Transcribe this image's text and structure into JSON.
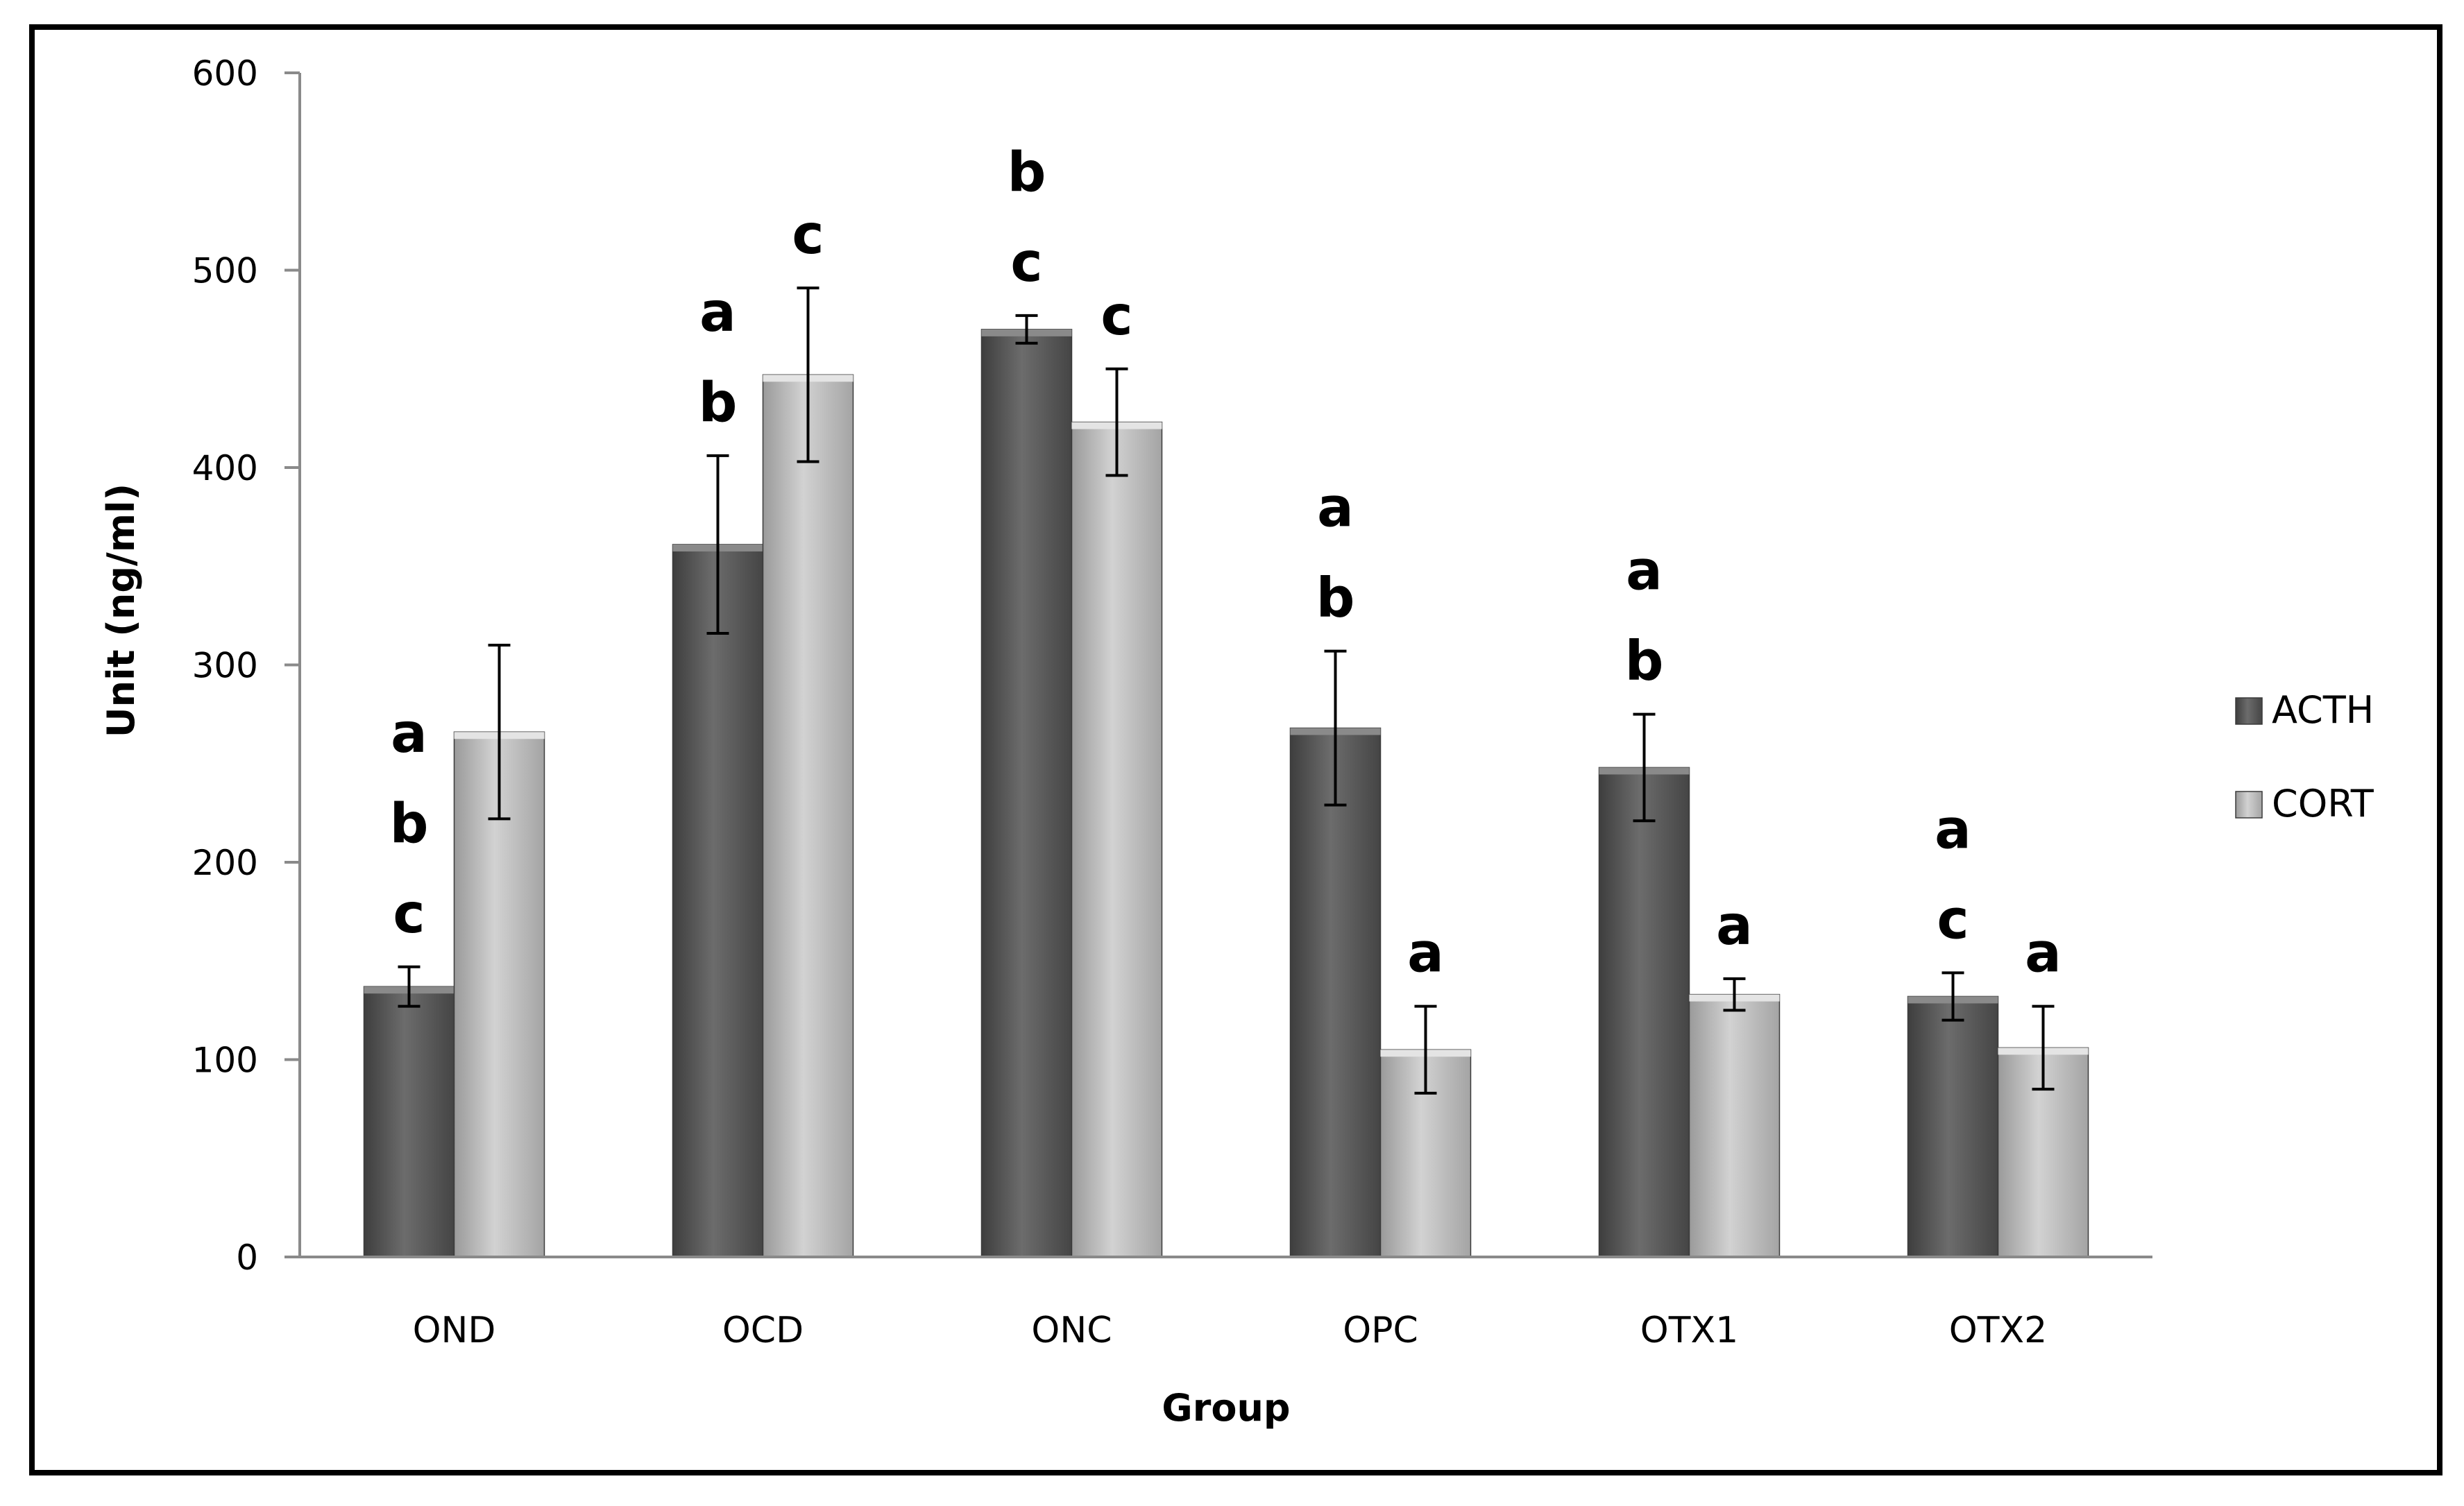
{
  "chart_data": {
    "type": "bar",
    "title": "",
    "xlabel": "Group",
    "ylabel": "Unit (ng/ml)",
    "ylim": [
      0,
      600
    ],
    "yticks": [
      0,
      100,
      200,
      300,
      400,
      500,
      600
    ],
    "categories": [
      "OND",
      "OCD",
      "ONC",
      "OPC",
      "OTX1",
      "OTX2"
    ],
    "legend_position": "right",
    "series": [
      {
        "name": "ACTH",
        "color": "#5e5e5e",
        "values": [
          137,
          361,
          470,
          268,
          248,
          132
        ],
        "errors": [
          10,
          45,
          7,
          39,
          27,
          12
        ],
        "letters": [
          [
            "a",
            "b",
            "c"
          ],
          [
            "a",
            "b"
          ],
          [
            "b",
            "c"
          ],
          [
            "a",
            "b"
          ],
          [
            "a",
            "b"
          ],
          [
            "a",
            "c"
          ]
        ]
      },
      {
        "name": "CORT",
        "color": "#b4b4b4",
        "values": [
          266,
          447,
          423,
          105,
          133,
          106
        ],
        "errors": [
          44,
          44,
          27,
          22,
          8,
          21
        ],
        "letters": [
          [],
          [
            "c"
          ],
          [
            "c"
          ],
          [
            "a"
          ],
          [
            "a"
          ],
          [
            "a"
          ]
        ]
      }
    ]
  }
}
